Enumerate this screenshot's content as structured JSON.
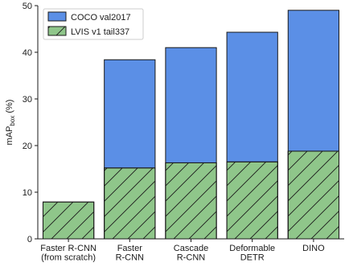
{
  "chart_data": {
    "type": "bar",
    "title": "",
    "xlabel": "",
    "ylabel": "mAP",
    "ylabel_sub": "box",
    "ylabel_suffix": " (%)",
    "categories": [
      [
        "Faster R-CNN",
        "(from scratch)"
      ],
      [
        "Faster",
        "R-CNN"
      ],
      [
        "Cascade",
        "R-CNN"
      ],
      [
        "Deformable",
        "DETR"
      ],
      [
        "DINO"
      ]
    ],
    "series": [
      {
        "name": "COCO val2017",
        "values": [
          null,
          38.4,
          41.0,
          44.3,
          49.0
        ],
        "color": "#5b8fe6",
        "hatch": false
      },
      {
        "name": "LVIS v1 tail337",
        "values": [
          7.9,
          15.2,
          16.3,
          16.5,
          18.8
        ],
        "color": "#8fc68a",
        "hatch": true
      }
    ],
    "layout": "overlaid",
    "ylim": [
      0,
      50
    ],
    "yticks": [
      0,
      10,
      20,
      30,
      40,
      50
    ],
    "grid": false,
    "legend_position": "top-left"
  }
}
